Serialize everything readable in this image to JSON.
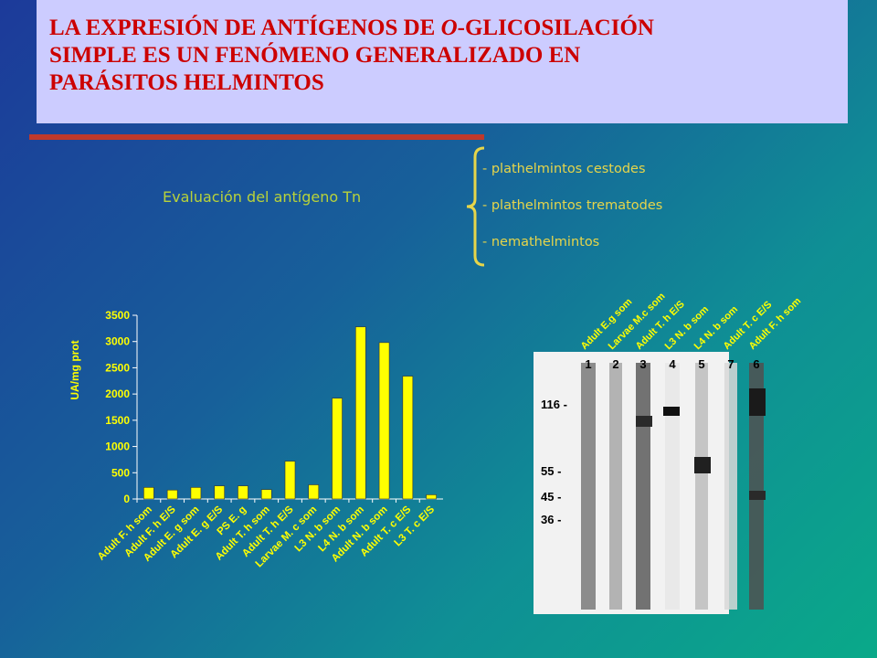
{
  "title": {
    "line1_pre": "LA EXPRESIÓN DE ANTÍGENOS DE ",
    "line1_italic": "O",
    "line1_post": "-GLICOSILACIÓN",
    "line2": "SIMPLE ES UN FENÓMENO GENERALIZADO EN",
    "line3": "PARÁSITOS HELMINTOS",
    "color": "#cc0000",
    "background": "#ccccff"
  },
  "subtitle": "Evaluación del antígeno Tn",
  "list": [
    "- plathelmintos cestodes",
    "- plathelmintos trematodes",
    "- nemathelmintos"
  ],
  "chart_data": {
    "type": "bar",
    "ylabel": "UA/mg prot",
    "ylim": [
      0,
      3500
    ],
    "yticks": [
      0,
      500,
      1000,
      1500,
      2000,
      2500,
      3000,
      3500
    ],
    "categories": [
      "Adult F. h som",
      "Adult F. h E/S",
      "Adult E. g som",
      "Adult E. g E/S",
      "PS E. g",
      "Adult T. h som",
      "Adult T. h E/S",
      "Larvae M. c som",
      "L3 N. b som",
      "L4 N. b som",
      "Adult N. b som",
      "Adult T. c E/S",
      "L3 T. c E/S"
    ],
    "values": [
      220,
      170,
      220,
      250,
      250,
      180,
      720,
      270,
      1920,
      3280,
      2980,
      2340,
      80
    ],
    "bar_color": "#ffff00",
    "text_color": "#ffff00",
    "grid": false
  },
  "blot": {
    "lane_labels": [
      "Adult E.g som",
      "Larvae M.c som",
      "Adult T. h E/S",
      "L3 N. b som",
      "L4 N. b som",
      "Adult T. c E/S",
      "Adult F. h som"
    ],
    "lane_numbers": [
      "1",
      "2",
      "3",
      "4",
      "5",
      "7",
      "6"
    ],
    "markers": [
      "116 -",
      "55 -",
      "45 -",
      "36 -"
    ]
  }
}
